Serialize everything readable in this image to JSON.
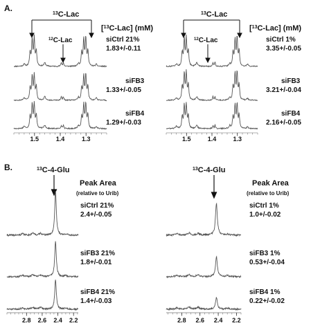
{
  "chart_data": [
    {
      "type": "line",
      "panel": "A.",
      "condition": "21%",
      "peak_label_main": "13C-Lac",
      "peak_label_main_sup": "13",
      "peak_label_main_rest": "C-Lac",
      "peak_label_mid": "12C-Lac",
      "peak_label_mid_sup": "12",
      "peak_label_mid_rest": "C-Lac",
      "header_pre": "[",
      "header_sup": "13",
      "header_post": "C-Lac] (mM)",
      "x_ticks": [
        "1.5",
        "1.4",
        "1.3"
      ],
      "x_tick_values": [
        1.5,
        1.4,
        1.3
      ],
      "x_range": [
        1.58,
        1.22
      ],
      "peak_positions": [
        1.505,
        1.392,
        1.305
      ],
      "series": [
        {
          "name": "siCtrl 21%",
          "value_label": "1.83+/-0.11",
          "value": 1.83,
          "error": 0.11
        },
        {
          "name": "siFB3",
          "value_label": "1.33+/-0.05",
          "value": 1.33,
          "error": 0.05
        },
        {
          "name": "siFB4",
          "value_label": "1.29+/-0.03",
          "value": 1.29,
          "error": 0.03
        }
      ]
    },
    {
      "type": "line",
      "panel": "",
      "condition": "1%",
      "peak_label_main": "13C-Lac",
      "peak_label_main_sup": "13",
      "peak_label_main_rest": "C-Lac",
      "peak_label_mid": "12C-Lac",
      "peak_label_mid_sup": "12",
      "peak_label_mid_rest": "C-Lac",
      "header_pre": "[",
      "header_sup": "13",
      "header_post": "C-Lac] (mM)",
      "x_ticks": [
        "1.5",
        "1.4",
        "1.3"
      ],
      "x_tick_values": [
        1.5,
        1.4,
        1.3
      ],
      "x_range": [
        1.58,
        1.22
      ],
      "peak_positions": [
        1.505,
        1.392,
        1.305
      ],
      "series": [
        {
          "name": "siCtrl 1%",
          "value_label": "3.35+/-0.05",
          "value": 3.35,
          "error": 0.05
        },
        {
          "name": "siFB3",
          "value_label": "3.21+/-0.04",
          "value": 3.21,
          "error": 0.04
        },
        {
          "name": "siFB4",
          "value_label": "2.16+/-0.05",
          "value": 2.16,
          "error": 0.05
        }
      ]
    },
    {
      "type": "line",
      "panel": "B.",
      "condition": "21%",
      "peak_label": "13C-4-Glu",
      "peak_label_sup": "13",
      "peak_label_rest": "C-4-Glu",
      "header_line1": "Peak Area",
      "header_line2": "(relative to Urib)",
      "x_ticks": [
        "2.8",
        "2.6",
        "2.4",
        "2.2"
      ],
      "x_tick_values": [
        2.8,
        2.6,
        2.4,
        2.2
      ],
      "x_range": [
        3.05,
        2.14
      ],
      "peak_position": 2.43,
      "series": [
        {
          "name": "siCtrl 21%",
          "value_label": "2.4+/-0.05",
          "value": 2.4,
          "error": 0.05
        },
        {
          "name": "siFB3 21%",
          "value_label": "1.8+/-0.01",
          "value": 1.8,
          "error": 0.01
        },
        {
          "name": "siFB4 21%",
          "value_label": "1.4+/-0.03",
          "value": 1.4,
          "error": 0.03
        }
      ]
    },
    {
      "type": "line",
      "panel": "",
      "condition": "1%",
      "peak_label": "13C-4-Glu",
      "peak_label_sup": "13",
      "peak_label_rest": "C-4-Glu",
      "header_line1": "Peak Area",
      "header_line2": "(relative to Urib)",
      "x_ticks": [
        "2.8",
        "2.6",
        "2.4",
        "2.2"
      ],
      "x_tick_values": [
        2.8,
        2.6,
        2.4,
        2.2
      ],
      "x_range": [
        2.97,
        2.15
      ],
      "peak_position": 2.42,
      "series": [
        {
          "name": "siCtrl 1%",
          "value_label": "1.0+/-0.02",
          "value": 1.0,
          "error": 0.02
        },
        {
          "name": "siFB3 1%",
          "value_label": "0.53+/-0.04",
          "value": 0.53,
          "error": 0.04
        },
        {
          "name": "siFB4 1%",
          "value_label": "0.22+/-0.02",
          "value": 0.22,
          "error": 0.02
        }
      ]
    }
  ]
}
